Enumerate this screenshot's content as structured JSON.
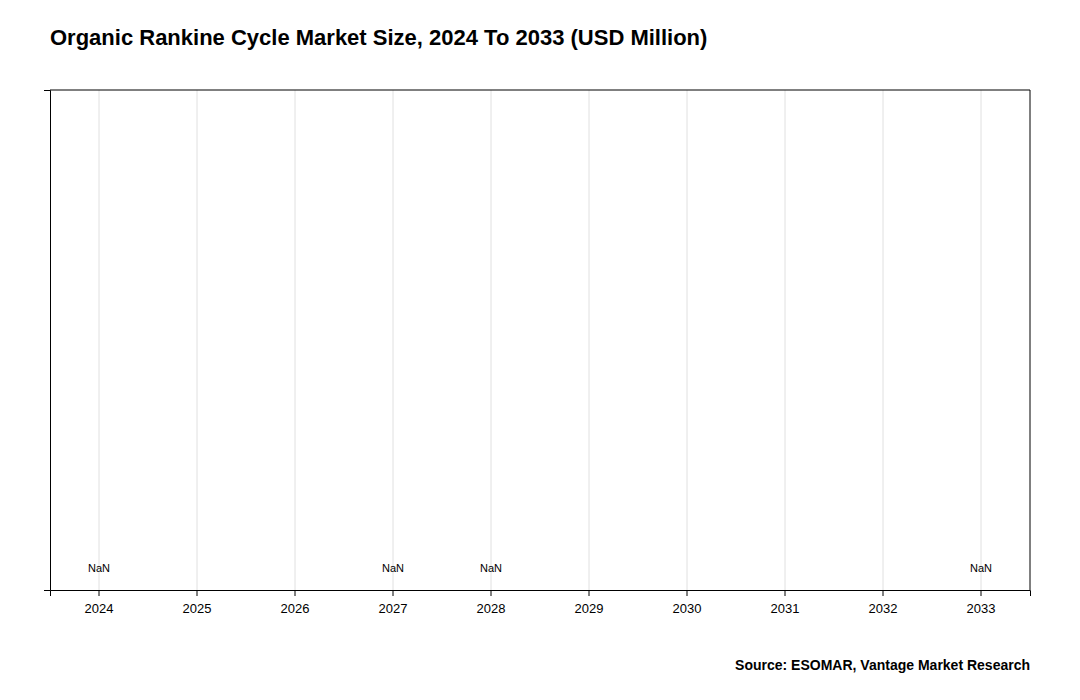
{
  "chart_data": {
    "type": "bar",
    "title": "Organic Rankine Cycle Market Size, 2024 To 2033 (USD Million)",
    "categories": [
      2024,
      2025,
      2026,
      2027,
      2028,
      2029,
      2030,
      2031,
      2032,
      2033
    ],
    "values": [
      null,
      null,
      null,
      null,
      null,
      null,
      null,
      null,
      null,
      null
    ],
    "ylim": [
      0,
      1
    ],
    "yticks": [],
    "tick_labels": "x",
    "grid": true,
    "annotations": [
      {
        "text": "NaN",
        "x": 2024
      },
      {
        "text": "NaN",
        "x": 2027
      },
      {
        "text": "NaN",
        "x": 2028
      },
      {
        "text": "NaN",
        "x": 2033
      }
    ],
    "source": "Source: ESOMAR, Vantage Market Research"
  }
}
